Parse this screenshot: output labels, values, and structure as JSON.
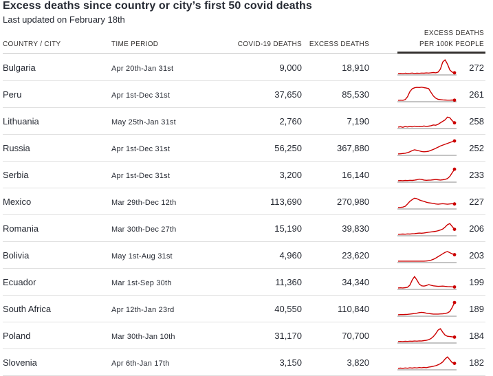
{
  "title": "Excess deaths since country or city’s first 50 covid deaths",
  "subtitle": "Last updated on February 18th",
  "headers": {
    "country": "COUNTRY / CITY",
    "period": "TIME PERIOD",
    "covid": "COVID-19 DEATHS",
    "excess": "EXCESS DEATHS",
    "per100k_line1": "EXCESS DEATHS",
    "per100k_line2": "PER 100K PEOPLE"
  },
  "colors": {
    "line": "#cc0000",
    "baseline": "#8a8a8a",
    "text": "#262a33"
  },
  "chart_data": {
    "type": "table",
    "columns": [
      "Country / city",
      "Time period",
      "Covid-19 deaths",
      "Excess deaths",
      "Excess deaths per 100k people"
    ],
    "rows": [
      {
        "country": "Bulgaria",
        "period": "Apr 20th-Jan 31st",
        "covid": "9,000",
        "excess": "18,910",
        "per100k": "272",
        "spark": [
          0.05,
          0.06,
          0.04,
          0.07,
          0.05,
          0.06,
          0.08,
          0.05,
          0.07,
          0.06,
          0.08,
          0.07,
          0.09,
          0.08,
          0.1,
          0.12,
          0.1,
          0.15,
          0.35,
          0.85,
          1.0,
          0.7,
          0.3,
          0.15,
          0.1
        ]
      },
      {
        "country": "Peru",
        "period": "Apr 1st-Dec 31st",
        "covid": "37,650",
        "excess": "85,530",
        "per100k": "261",
        "spark": [
          0.05,
          0.06,
          0.05,
          0.1,
          0.3,
          0.65,
          0.85,
          0.92,
          0.95,
          0.94,
          0.96,
          0.93,
          0.9,
          0.86,
          0.6,
          0.35,
          0.2,
          0.12,
          0.1,
          0.08,
          0.07,
          0.06,
          0.06,
          0.07,
          0.06
        ]
      },
      {
        "country": "Lithuania",
        "period": "May 25th-Jan 31st",
        "covid": "2,760",
        "excess": "7,190",
        "per100k": "258",
        "spark": [
          0.05,
          0.08,
          0.04,
          0.09,
          0.06,
          0.1,
          0.07,
          0.12,
          0.08,
          0.1,
          0.09,
          0.13,
          0.1,
          0.12,
          0.15,
          0.2,
          0.18,
          0.25,
          0.35,
          0.45,
          0.55,
          0.75,
          0.7,
          0.5,
          0.35
        ]
      },
      {
        "country": "Russia",
        "period": "Apr 1st-Dec 31st",
        "covid": "56,250",
        "excess": "367,880",
        "per100k": "252",
        "spark": [
          0.05,
          0.06,
          0.08,
          0.1,
          0.14,
          0.2,
          0.28,
          0.34,
          0.3,
          0.26,
          0.22,
          0.2,
          0.21,
          0.24,
          0.3,
          0.36,
          0.44,
          0.52,
          0.6,
          0.66,
          0.72,
          0.78,
          0.84,
          0.9,
          0.95
        ]
      },
      {
        "country": "Serbia",
        "period": "Apr 1st-Dec 31st",
        "covid": "3,200",
        "excess": "16,140",
        "per100k": "233",
        "spark": [
          0.05,
          0.06,
          0.05,
          0.07,
          0.06,
          0.08,
          0.07,
          0.09,
          0.12,
          0.16,
          0.14,
          0.1,
          0.08,
          0.09,
          0.1,
          0.12,
          0.14,
          0.12,
          0.1,
          0.12,
          0.15,
          0.2,
          0.35,
          0.6,
          0.85
        ]
      },
      {
        "country": "Mexico",
        "period": "Mar 29th-Dec 12th",
        "covid": "113,690",
        "excess": "270,980",
        "per100k": "227",
        "spark": [
          0.05,
          0.06,
          0.08,
          0.14,
          0.3,
          0.48,
          0.6,
          0.7,
          0.66,
          0.58,
          0.52,
          0.48,
          0.42,
          0.38,
          0.36,
          0.34,
          0.3,
          0.28,
          0.3,
          0.32,
          0.3,
          0.28,
          0.3,
          0.32,
          0.3
        ]
      },
      {
        "country": "Romania",
        "period": "Mar 30th-Dec 27th",
        "covid": "15,190",
        "excess": "39,830",
        "per100k": "206",
        "spark": [
          0.05,
          0.06,
          0.07,
          0.06,
          0.08,
          0.07,
          0.09,
          0.1,
          0.12,
          0.14,
          0.13,
          0.15,
          0.17,
          0.2,
          0.22,
          0.24,
          0.26,
          0.3,
          0.35,
          0.42,
          0.55,
          0.72,
          0.8,
          0.6,
          0.4
        ]
      },
      {
        "country": "Bolivia",
        "period": "May 1st-Aug 31st",
        "covid": "4,960",
        "excess": "23,620",
        "per100k": "203",
        "spark": [
          0.05,
          0.05,
          0.05,
          0.05,
          0.05,
          0.05,
          0.05,
          0.05,
          0.05,
          0.05,
          0.05,
          0.05,
          0.06,
          0.08,
          0.12,
          0.18,
          0.26,
          0.36,
          0.46,
          0.56,
          0.66,
          0.72,
          0.64,
          0.56,
          0.5
        ]
      },
      {
        "country": "Ecuador",
        "period": "Mar 1st-Sep 30th",
        "covid": "11,360",
        "excess": "34,340",
        "per100k": "199",
        "spark": [
          0.05,
          0.06,
          0.05,
          0.07,
          0.1,
          0.25,
          0.6,
          0.85,
          0.6,
          0.32,
          0.2,
          0.18,
          0.22,
          0.28,
          0.24,
          0.2,
          0.18,
          0.16,
          0.17,
          0.18,
          0.16,
          0.15,
          0.14,
          0.13,
          0.12
        ]
      },
      {
        "country": "South Africa",
        "period": "Apr 12th-Jan 23rd",
        "covid": "40,550",
        "excess": "110,840",
        "per100k": "189",
        "spark": [
          0.05,
          0.06,
          0.06,
          0.07,
          0.08,
          0.1,
          0.12,
          0.14,
          0.16,
          0.2,
          0.22,
          0.2,
          0.16,
          0.14,
          0.12,
          0.1,
          0.1,
          0.1,
          0.11,
          0.12,
          0.14,
          0.18,
          0.28,
          0.55,
          0.9
        ]
      },
      {
        "country": "Poland",
        "period": "Mar 30th-Jan 10th",
        "covid": "31,170",
        "excess": "70,700",
        "per100k": "184",
        "spark": [
          0.05,
          0.06,
          0.05,
          0.07,
          0.06,
          0.08,
          0.07,
          0.09,
          0.08,
          0.1,
          0.09,
          0.12,
          0.14,
          0.18,
          0.26,
          0.4,
          0.6,
          0.85,
          0.95,
          0.7,
          0.5,
          0.42,
          0.4,
          0.38,
          0.36
        ]
      },
      {
        "country": "Slovenia",
        "period": "Apr 6th-Jan 17th",
        "covid": "3,150",
        "excess": "3,820",
        "per100k": "182",
        "spark": [
          0.05,
          0.07,
          0.05,
          0.08,
          0.06,
          0.09,
          0.07,
          0.1,
          0.08,
          0.11,
          0.09,
          0.12,
          0.1,
          0.14,
          0.16,
          0.2,
          0.24,
          0.3,
          0.38,
          0.5,
          0.7,
          0.85,
          0.65,
          0.45,
          0.4
        ]
      }
    ]
  }
}
